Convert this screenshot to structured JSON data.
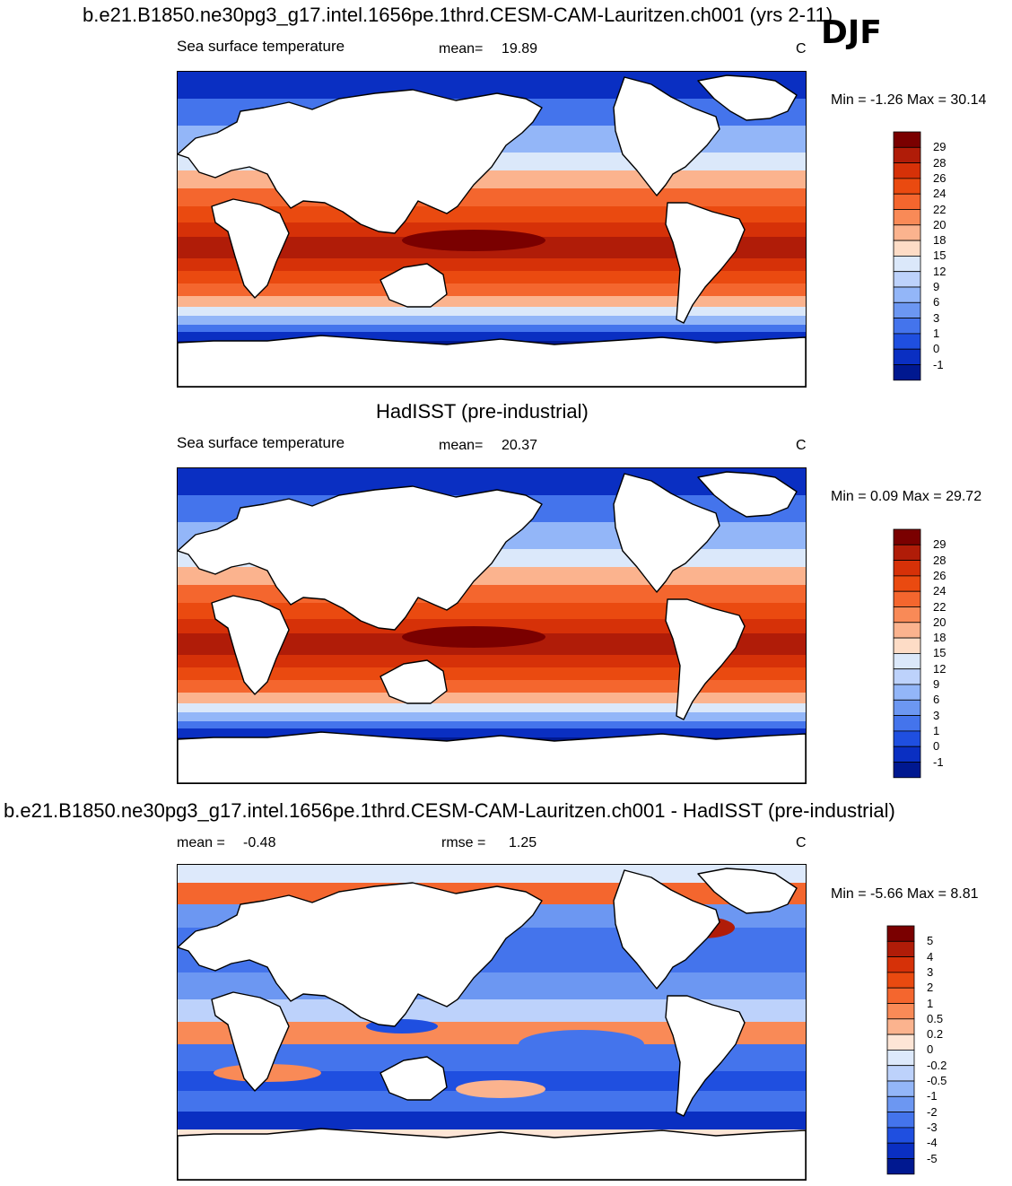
{
  "season": "DJF",
  "panels": [
    {
      "title": "b.e21.B1850.ne30pg3_g17.intel.1656pe.1thrd.CESM-CAM-Lauritzen.ch001 (yrs 2-11)",
      "variable": "Sea surface temperature",
      "stat1_label": "mean=",
      "stat1_value": "19.89",
      "stat2_label": "",
      "stat2_value": "",
      "units": "C",
      "minmax": "Min =  -1.26 Max =  30.14",
      "colorbar": {
        "labels": [
          "29",
          "28",
          "26",
          "24",
          "22",
          "20",
          "18",
          "15",
          "12",
          "9",
          "6",
          "3",
          "1",
          "0",
          "-1"
        ],
        "colors": [
          "#7a0000",
          "#b01c08",
          "#d63108",
          "#ea4a10",
          "#f4662e",
          "#f98a57",
          "#fbb38e",
          "#fddcc6",
          "#dbe8fa",
          "#bdd2fb",
          "#93b6f8",
          "#6c97f2",
          "#4474ec",
          "#1f4fe0",
          "#0a2fc2",
          "#001890"
        ]
      }
    },
    {
      "title": "HadISST (pre-industrial)",
      "variable": "Sea surface temperature",
      "stat1_label": "mean=",
      "stat1_value": "20.37",
      "stat2_label": "",
      "stat2_value": "",
      "units": "C",
      "minmax": "Min =   0.09 Max =  29.72",
      "colorbar": {
        "labels": [
          "29",
          "28",
          "26",
          "24",
          "22",
          "20",
          "18",
          "15",
          "12",
          "9",
          "6",
          "3",
          "1",
          "0",
          "-1"
        ],
        "colors": [
          "#7a0000",
          "#b01c08",
          "#d63108",
          "#ea4a10",
          "#f4662e",
          "#f98a57",
          "#fbb38e",
          "#fddcc6",
          "#dbe8fa",
          "#bdd2fb",
          "#93b6f8",
          "#6c97f2",
          "#4474ec",
          "#1f4fe0",
          "#0a2fc2",
          "#001890"
        ]
      }
    },
    {
      "title": "b.e21.B1850.ne30pg3_g17.intel.1656pe.1thrd.CESM-CAM-Lauritzen.ch001 - HadISST (pre-industrial)",
      "variable": "",
      "stat1_label": "mean =",
      "stat1_value": "-0.48",
      "stat2_label": "rmse =",
      "stat2_value": "1.25",
      "units": "C",
      "minmax": "Min =  -5.66 Max =   8.81",
      "colorbar": {
        "labels": [
          "5",
          "4",
          "3",
          "2",
          "1",
          "0.5",
          "0.2",
          "0",
          "-0.2",
          "-0.5",
          "-1",
          "-2",
          "-3",
          "-4",
          "-5"
        ],
        "colors": [
          "#7a0000",
          "#b01c08",
          "#d63108",
          "#ea4a10",
          "#f4662e",
          "#f98a57",
          "#fbb38e",
          "#fde5d6",
          "#dde9fb",
          "#bdd2fb",
          "#93b6f8",
          "#6c97f2",
          "#4474ec",
          "#1f4fe0",
          "#0a2fc2",
          "#001890"
        ]
      }
    }
  ],
  "chart_data": [
    {
      "type": "heatmap",
      "title": "b.e21.B1850.ne30pg3_g17.intel.1656pe.1thrd.CESM-CAM-Lauritzen.ch001 (yrs 2-11)",
      "subtitle": "Sea surface temperature",
      "season": "DJF",
      "units": "C",
      "mean": 19.89,
      "min": -1.26,
      "max": 30.14,
      "levels": [
        -1,
        0,
        1,
        3,
        6,
        9,
        12,
        15,
        18,
        20,
        22,
        24,
        26,
        28,
        29
      ]
    },
    {
      "type": "heatmap",
      "title": "HadISST (pre-industrial)",
      "subtitle": "Sea surface temperature",
      "season": "DJF",
      "units": "C",
      "mean": 20.37,
      "min": 0.09,
      "max": 29.72,
      "levels": [
        -1,
        0,
        1,
        3,
        6,
        9,
        12,
        15,
        18,
        20,
        22,
        24,
        26,
        28,
        29
      ]
    },
    {
      "type": "heatmap",
      "title": "b.e21.B1850.ne30pg3_g17.intel.1656pe.1thrd.CESM-CAM-Lauritzen.ch001 - HadISST (pre-industrial)",
      "season": "DJF",
      "units": "C",
      "mean": -0.48,
      "rmse": 1.25,
      "min": -5.66,
      "max": 8.81,
      "levels": [
        -5,
        -4,
        -3,
        -2,
        -1,
        -0.5,
        -0.2,
        0,
        0.2,
        0.5,
        1,
        2,
        3,
        4,
        5
      ]
    }
  ]
}
